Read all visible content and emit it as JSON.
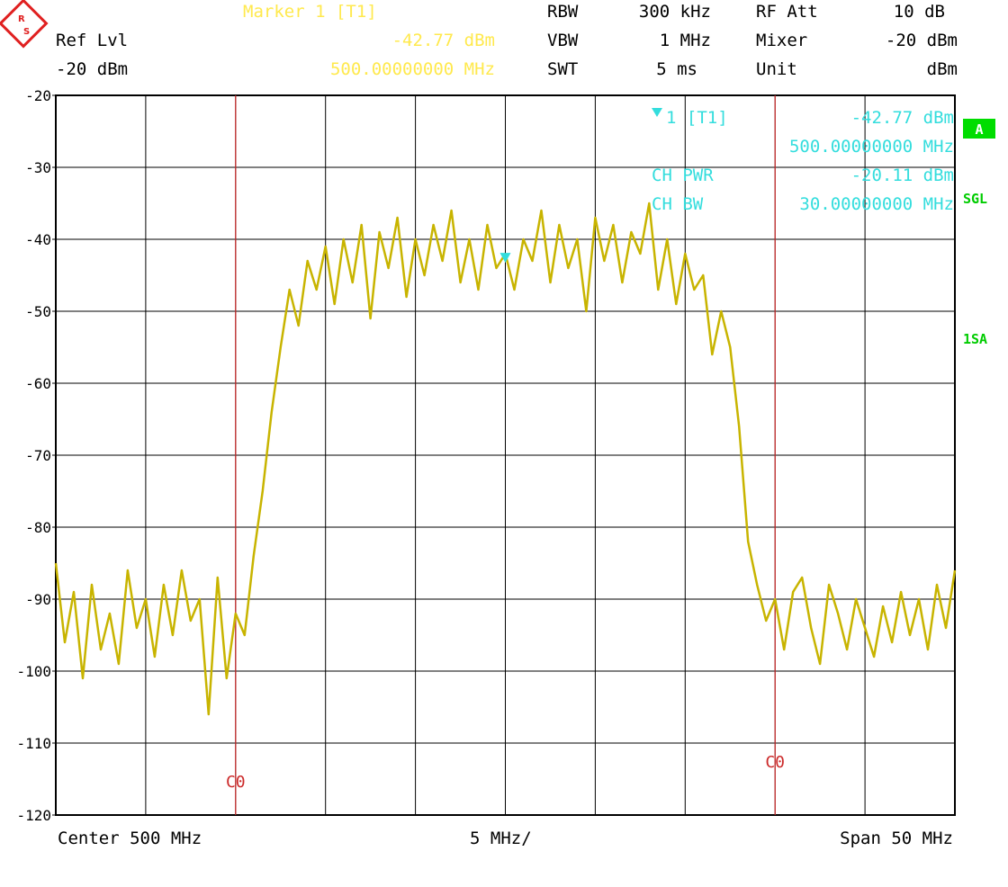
{
  "header": {
    "col1": {
      "ref_lvl_label": "Ref Lvl",
      "ref_lvl_value": "-20 dBm"
    },
    "marker": {
      "title": "Marker 1 [T1]",
      "level": "-42.77 dBm",
      "frequency": "500.00000000 MHz"
    },
    "col3": [
      {
        "label": "RBW",
        "value": "300 kHz"
      },
      {
        "label": "VBW",
        "value": "1 MHz"
      },
      {
        "label": "SWT",
        "value": "5 ms"
      }
    ],
    "col4": [
      {
        "label": "RF Att",
        "value": "10 dB"
      },
      {
        "label": "Mixer",
        "value": "-20 dBm"
      },
      {
        "label": "Unit",
        "value": "dBm"
      }
    ]
  },
  "side_indicators": {
    "trace_badge": "A",
    "sgl": "SGL",
    "sa": "1SA"
  },
  "marker_box": {
    "line1_label": "1 [T1]",
    "line1_value": "-42.77 dBm",
    "line2_value": "500.00000000 MHz",
    "line3_label": "CH PWR",
    "line3_value": "-20.11 dBm",
    "line4_label": "CH BW",
    "line4_value": "30.00000000 MHz"
  },
  "footer": {
    "left": "Center 500 MHz",
    "center": "5 MHz/",
    "right": "Span 50 MHz"
  },
  "colors": {
    "trace": "#c8b400",
    "marker_text": "#ffe94d",
    "marker_box_text": "#33dddd",
    "channel_line": "#cc2a2a",
    "side_green": "#00cc00",
    "logo": "#e02020"
  },
  "chart_data": {
    "type": "line",
    "title": "",
    "xlabel": "",
    "ylabel": "",
    "xlim": [
      475,
      525
    ],
    "ylim": [
      -120,
      -20
    ],
    "y_tick_labels": [
      "-20",
      "-30",
      "-40",
      "-50",
      "-60",
      "-70",
      "-80",
      "-90",
      "-100",
      "-110",
      "-120"
    ],
    "y_ticks": [
      -20,
      -30,
      -40,
      -50,
      -60,
      -70,
      -80,
      -90,
      -100,
      -110,
      -120
    ],
    "grid": true,
    "channel_lines": [
      {
        "label": "C0",
        "x": 485
      },
      {
        "label": "C0",
        "x": 515
      }
    ],
    "marker": {
      "x": 500,
      "y": -42.77
    },
    "series": [
      {
        "x": [
          475,
          475.5,
          476,
          476.5,
          477,
          477.5,
          478,
          478.5,
          479,
          479.5,
          480,
          480.5,
          481,
          481.5,
          482,
          482.5,
          483,
          483.5,
          484,
          484.5,
          485,
          485.5,
          486,
          486.5,
          487,
          487.5,
          488,
          488.5,
          489,
          489.5,
          490,
          490.5,
          491,
          491.5,
          492,
          492.5,
          493,
          493.5,
          494,
          494.5,
          495,
          495.5,
          496,
          496.5,
          497,
          497.5,
          498,
          498.5,
          499,
          499.5,
          500,
          500.5,
          501,
          501.5,
          502,
          502.5,
          503,
          503.5,
          504,
          504.5,
          505,
          505.5,
          506,
          506.5,
          507,
          507.5,
          508,
          508.5,
          509,
          509.5,
          510,
          510.5,
          511,
          511.5,
          512,
          512.5,
          513,
          513.5,
          514,
          514.5,
          515,
          515.5,
          516,
          516.5,
          517,
          517.5,
          518,
          518.5,
          519,
          519.5,
          520,
          520.5,
          521,
          521.5,
          522,
          522.5,
          523,
          523.5,
          524,
          524.5,
          525
        ],
        "y": [
          -85,
          -96,
          -89,
          -101,
          -88,
          -97,
          -92,
          -99,
          -86,
          -94,
          -90,
          -98,
          -88,
          -95,
          -86,
          -93,
          -90,
          -106,
          -87,
          -101,
          -92,
          -95,
          -84,
          -75,
          -64,
          -55,
          -47,
          -52,
          -43,
          -47,
          -41,
          -49,
          -40,
          -46,
          -38,
          -51,
          -39,
          -44,
          -37,
          -48,
          -40,
          -45,
          -38,
          -43,
          -36,
          -46,
          -40,
          -47,
          -38,
          -44,
          -42,
          -47,
          -40,
          -43,
          -36,
          -46,
          -38,
          -44,
          -40,
          -50,
          -37,
          -43,
          -38,
          -46,
          -39,
          -42,
          -35,
          -47,
          -40,
          -49,
          -42,
          -47,
          -45,
          -56,
          -50,
          -55,
          -66,
          -82,
          -88,
          -93,
          -90,
          -97,
          -89,
          -87,
          -94,
          -99,
          -88,
          -92,
          -97,
          -90,
          -94,
          -98,
          -91,
          -96,
          -89,
          -95,
          -90,
          -97,
          -88,
          -94,
          -86
        ]
      }
    ]
  }
}
